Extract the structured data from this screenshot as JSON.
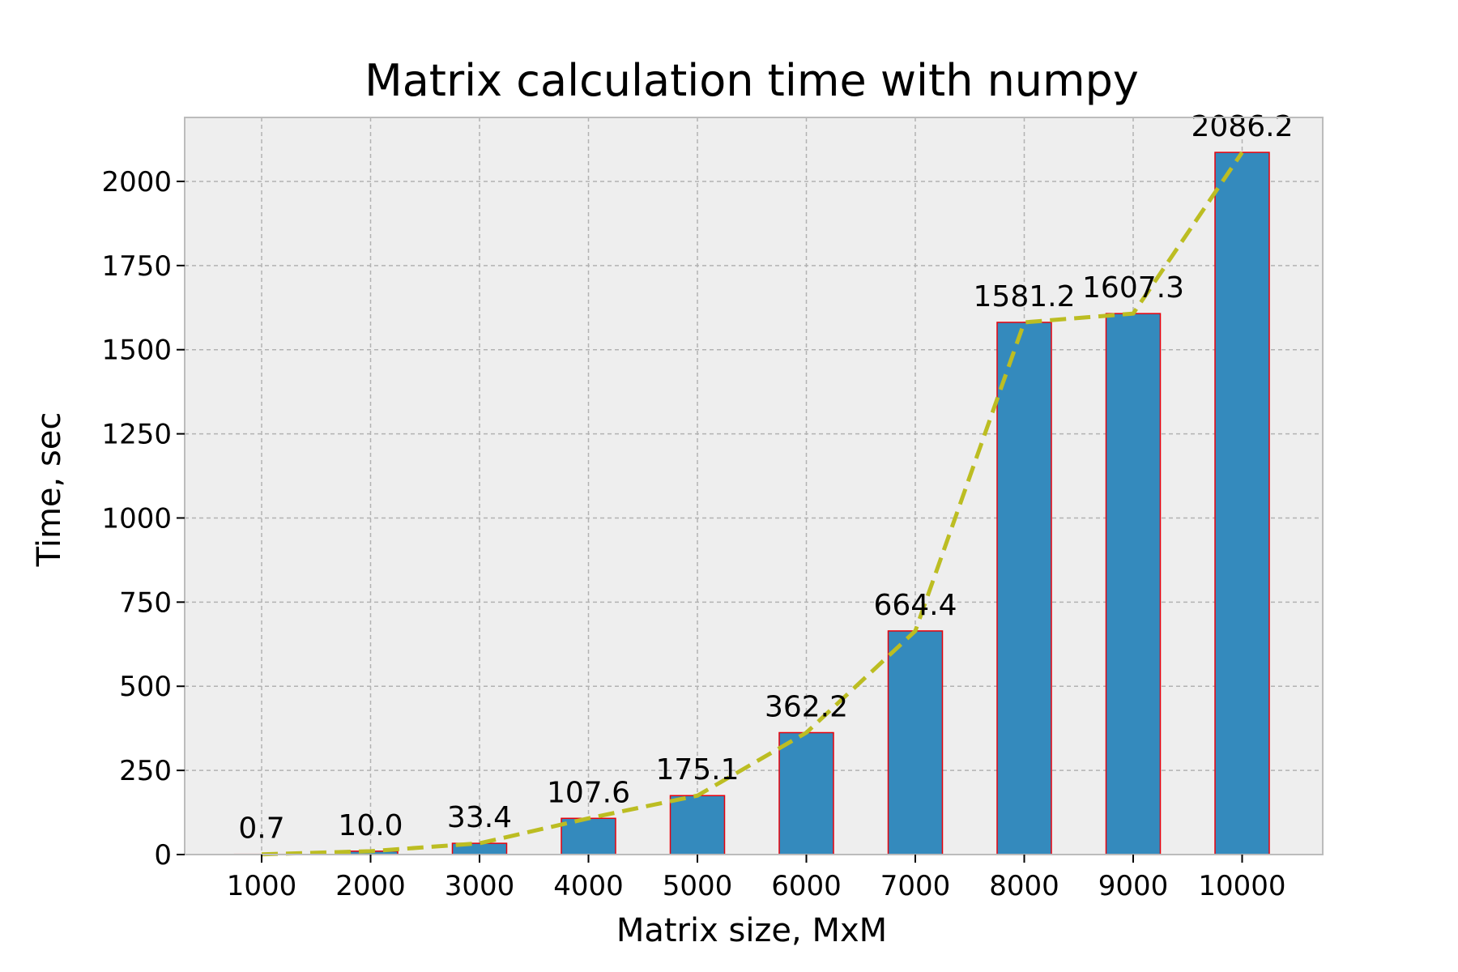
{
  "chart_data": {
    "type": "bar",
    "title": "Matrix calculation time with numpy",
    "xlabel": "Matrix size, MxM",
    "ylabel": "Time, sec",
    "categories": [
      "1000",
      "2000",
      "3000",
      "4000",
      "5000",
      "6000",
      "7000",
      "8000",
      "9000",
      "10000"
    ],
    "values": [
      0.7,
      10.0,
      33.4,
      107.6,
      175.1,
      362.2,
      664.4,
      1581.2,
      1607.3,
      2086.2
    ],
    "value_labels": [
      "0.7",
      "10.0",
      "33.4",
      "107.6",
      "175.1",
      "362.2",
      "664.4",
      "1581.2",
      "1607.3",
      "2086.2"
    ],
    "overlay_line": {
      "style": "dashed",
      "color": "#bcbd22"
    },
    "ylim": [
      0,
      2190
    ],
    "yticks": [
      0,
      250,
      500,
      750,
      1000,
      1250,
      1500,
      1750,
      2000
    ],
    "grid": true,
    "legend": "none",
    "colors": {
      "bar_fill": "#348abd",
      "bar_edge": "#e8000b",
      "plot_background": "#eeeeee",
      "grid": "#b2b2b2",
      "frame": "#bcbcbc"
    }
  }
}
